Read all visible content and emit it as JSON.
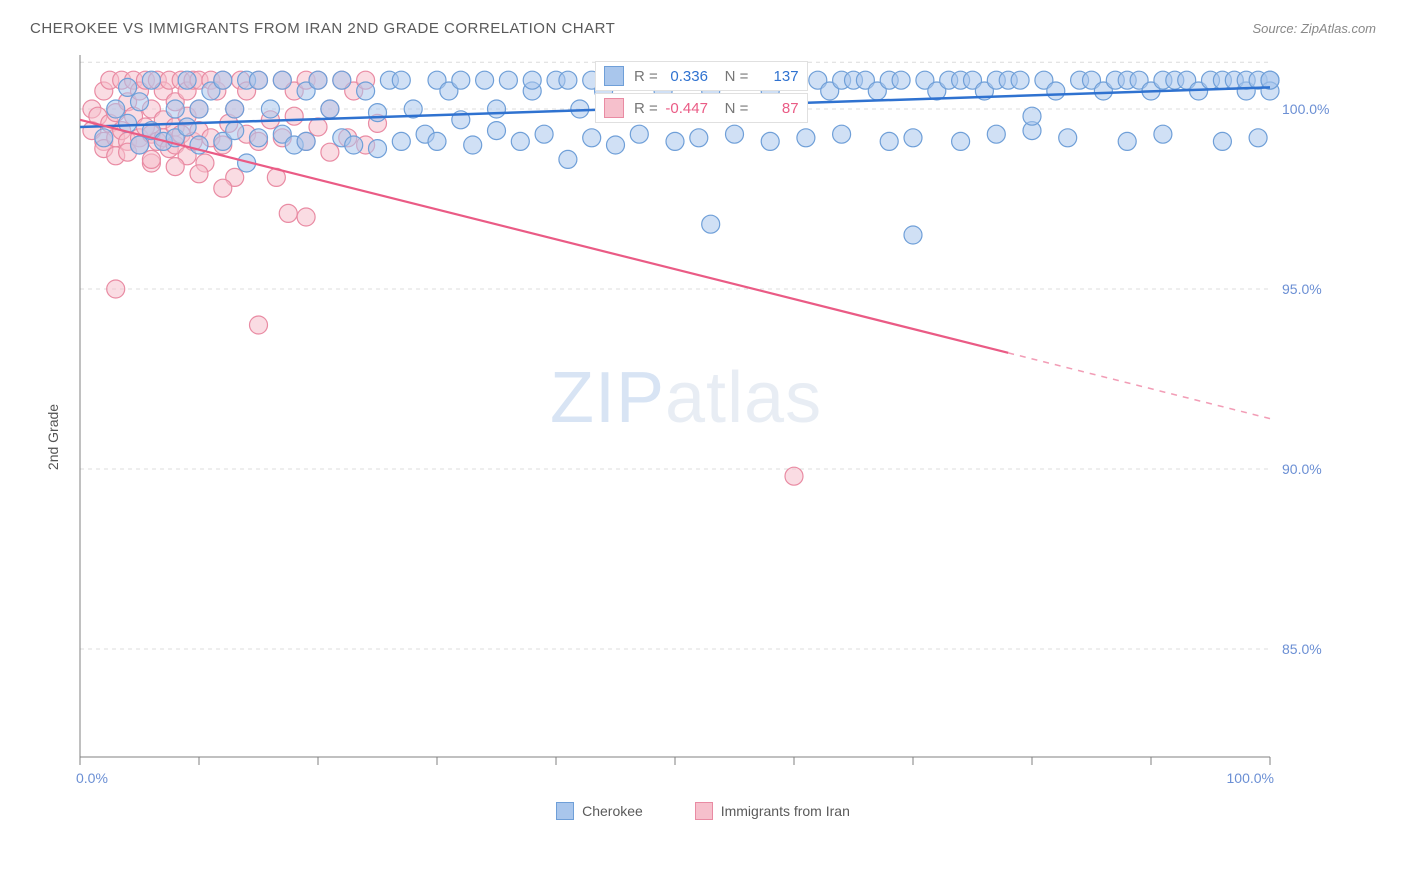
{
  "title": "CHEROKEE VS IMMIGRANTS FROM IRAN 2ND GRADE CORRELATION CHART",
  "source_label": "Source: ZipAtlas.com",
  "y_axis_label": "2nd Grade",
  "watermark_a": "ZIP",
  "watermark_b": "atlas",
  "chart": {
    "type": "scatter",
    "xlim": [
      0,
      100
    ],
    "ylim": [
      82,
      101.5
    ],
    "x_ticks": [
      0,
      10,
      20,
      30,
      40,
      50,
      60,
      70,
      80,
      90,
      100
    ],
    "x_tick_labels_shown": {
      "0": "0.0%",
      "100": "100.0%"
    },
    "y_ticks": [
      85,
      90,
      95,
      100
    ],
    "y_tick_labels": {
      "85": "85.0%",
      "90": "90.0%",
      "95": "95.0%",
      "100": "100.0%"
    },
    "y_grid_extra": [
      101.3
    ],
    "grid_color": "#dcdcdc",
    "axis_line_color": "#808080",
    "tick_label_color": "#6b8fd4",
    "background_color": "#ffffff",
    "series": [
      {
        "name": "Cherokee",
        "color_fill": "#a9c6ec",
        "color_stroke": "#6f9fd8",
        "marker_radius": 9,
        "fill_opacity": 0.55,
        "trend": {
          "x1": 0,
          "y1": 99.5,
          "x2": 100,
          "y2": 100.6,
          "color": "#2f72d0",
          "width": 2.5,
          "dash_from_x": null
        },
        "stats": {
          "r_label": "R =",
          "r": "0.336",
          "n_label": "N =",
          "n": "137"
        },
        "points": [
          [
            2,
            99.2
          ],
          [
            3,
            100
          ],
          [
            4,
            99.6
          ],
          [
            4,
            100.6
          ],
          [
            5,
            99
          ],
          [
            5,
            100.2
          ],
          [
            6,
            99.4
          ],
          [
            6,
            100.8
          ],
          [
            7,
            99.1
          ],
          [
            8,
            100
          ],
          [
            8,
            99.2
          ],
          [
            9,
            100.8
          ],
          [
            9,
            99.5
          ],
          [
            10,
            100
          ],
          [
            10,
            99
          ],
          [
            11,
            100.5
          ],
          [
            12,
            99.1
          ],
          [
            12,
            100.8
          ],
          [
            13,
            100
          ],
          [
            13,
            99.4
          ],
          [
            14,
            100.8
          ],
          [
            14,
            98.5
          ],
          [
            15,
            99.2
          ],
          [
            15,
            100.8
          ],
          [
            16,
            100
          ],
          [
            17,
            99.3
          ],
          [
            17,
            100.8
          ],
          [
            18,
            99
          ],
          [
            19,
            100.5
          ],
          [
            19,
            99.1
          ],
          [
            20,
            100.8
          ],
          [
            21,
            100
          ],
          [
            22,
            99.2
          ],
          [
            22,
            100.8
          ],
          [
            23,
            99
          ],
          [
            24,
            100.5
          ],
          [
            25,
            98.9
          ],
          [
            25,
            99.9
          ],
          [
            26,
            100.8
          ],
          [
            27,
            99.1
          ],
          [
            27,
            100.8
          ],
          [
            28,
            100
          ],
          [
            29,
            99.3
          ],
          [
            30,
            100.8
          ],
          [
            30,
            99.1
          ],
          [
            31,
            100.5
          ],
          [
            32,
            99.7
          ],
          [
            32,
            100.8
          ],
          [
            33,
            99
          ],
          [
            34,
            100.8
          ],
          [
            35,
            100
          ],
          [
            35,
            99.4
          ],
          [
            36,
            100.8
          ],
          [
            37,
            99.1
          ],
          [
            38,
            100.5
          ],
          [
            38,
            100.8
          ],
          [
            39,
            99.3
          ],
          [
            40,
            100.8
          ],
          [
            41,
            98.6
          ],
          [
            41,
            100.8
          ],
          [
            42,
            100
          ],
          [
            43,
            99.2
          ],
          [
            43,
            100.8
          ],
          [
            44,
            100.5
          ],
          [
            45,
            99
          ],
          [
            45,
            100.8
          ],
          [
            46,
            100.8
          ],
          [
            47,
            99.3
          ],
          [
            48,
            100.8
          ],
          [
            49,
            100.5
          ],
          [
            50,
            99.1
          ],
          [
            50,
            100.8
          ],
          [
            51,
            100.8
          ],
          [
            52,
            99.2
          ],
          [
            53,
            100.5
          ],
          [
            53,
            96.8
          ],
          [
            54,
            100.8
          ],
          [
            55,
            99.3
          ],
          [
            56,
            100.8
          ],
          [
            57,
            100.8
          ],
          [
            58,
            100.5
          ],
          [
            58,
            99.1
          ],
          [
            59,
            100.8
          ],
          [
            60,
            100.8
          ],
          [
            61,
            99.2
          ],
          [
            62,
            100.8
          ],
          [
            63,
            100.5
          ],
          [
            64,
            99.3
          ],
          [
            64,
            100.8
          ],
          [
            65,
            100.8
          ],
          [
            66,
            100.8
          ],
          [
            67,
            100.5
          ],
          [
            68,
            99.1
          ],
          [
            68,
            100.8
          ],
          [
            69,
            100.8
          ],
          [
            70,
            99.2
          ],
          [
            70,
            96.5
          ],
          [
            71,
            100.8
          ],
          [
            72,
            100.5
          ],
          [
            73,
            100.8
          ],
          [
            74,
            99.1
          ],
          [
            74,
            100.8
          ],
          [
            75,
            100.8
          ],
          [
            76,
            100.5
          ],
          [
            77,
            99.3
          ],
          [
            77,
            100.8
          ],
          [
            78,
            100.8
          ],
          [
            79,
            100.8
          ],
          [
            80,
            99.4
          ],
          [
            80,
            99.8
          ],
          [
            81,
            100.8
          ],
          [
            82,
            100.5
          ],
          [
            83,
            99.2
          ],
          [
            84,
            100.8
          ],
          [
            85,
            100.8
          ],
          [
            86,
            100.5
          ],
          [
            87,
            100.8
          ],
          [
            88,
            99.1
          ],
          [
            88,
            100.8
          ],
          [
            89,
            100.8
          ],
          [
            90,
            100.5
          ],
          [
            91,
            100.8
          ],
          [
            91,
            99.3
          ],
          [
            92,
            100.8
          ],
          [
            93,
            100.8
          ],
          [
            94,
            100.5
          ],
          [
            95,
            100.8
          ],
          [
            96,
            99.1
          ],
          [
            96,
            100.8
          ],
          [
            97,
            100.8
          ],
          [
            98,
            100.5
          ],
          [
            98,
            100.8
          ],
          [
            99,
            100.8
          ],
          [
            99,
            99.2
          ],
          [
            100,
            100.8
          ],
          [
            100,
            100.5
          ],
          [
            100,
            100.8
          ]
        ]
      },
      {
        "name": "Immigrants from Iran",
        "color_fill": "#f6c0cc",
        "color_stroke": "#e98ba3",
        "marker_radius": 9,
        "fill_opacity": 0.55,
        "trend": {
          "x1": 0,
          "y1": 99.7,
          "x2": 100,
          "y2": 91.4,
          "color": "#ea5b85",
          "width": 2.2,
          "dash_from_x": 78
        },
        "stats": {
          "r_label": "R =",
          "r": "-0.447",
          "n_label": "N =",
          "n": "87"
        },
        "points": [
          [
            1,
            99.4
          ],
          [
            1,
            100
          ],
          [
            1.5,
            99.8
          ],
          [
            2,
            99.1
          ],
          [
            2,
            100.5
          ],
          [
            2,
            98.9
          ],
          [
            2.5,
            99.6
          ],
          [
            2.5,
            100.8
          ],
          [
            3,
            99.2
          ],
          [
            3,
            99.9
          ],
          [
            3,
            98.7
          ],
          [
            3.5,
            100.8
          ],
          [
            3.5,
            99.4
          ],
          [
            4,
            100.2
          ],
          [
            4,
            99.1
          ],
          [
            4,
            98.8
          ],
          [
            4.5,
            99.8
          ],
          [
            4.5,
            100.8
          ],
          [
            5,
            99.2
          ],
          [
            5,
            100.5
          ],
          [
            5,
            99
          ],
          [
            5.5,
            100.8
          ],
          [
            5.5,
            99.5
          ],
          [
            6,
            100
          ],
          [
            6,
            99.3
          ],
          [
            6,
            98.5
          ],
          [
            6.5,
            100.8
          ],
          [
            6.5,
            99.1
          ],
          [
            7,
            100.5
          ],
          [
            7,
            99.7
          ],
          [
            7,
            99.2
          ],
          [
            7.5,
            100.8
          ],
          [
            7.5,
            98.9
          ],
          [
            8,
            99.5
          ],
          [
            8,
            100.2
          ],
          [
            8,
            99
          ],
          [
            8.5,
            100.8
          ],
          [
            8.5,
            99.3
          ],
          [
            9,
            100.5
          ],
          [
            9,
            99.8
          ],
          [
            9,
            98.7
          ],
          [
            9.5,
            100.8
          ],
          [
            9.5,
            99.1
          ],
          [
            10,
            100
          ],
          [
            10,
            99.4
          ],
          [
            10,
            100.8
          ],
          [
            10.5,
            98.5
          ],
          [
            11,
            100.8
          ],
          [
            11,
            99.2
          ],
          [
            11.5,
            100.5
          ],
          [
            12,
            99
          ],
          [
            12,
            100.8
          ],
          [
            12.5,
            99.6
          ],
          [
            13,
            100
          ],
          [
            13,
            98.1
          ],
          [
            13.5,
            100.8
          ],
          [
            14,
            99.3
          ],
          [
            14,
            100.5
          ],
          [
            15,
            99.1
          ],
          [
            15,
            100.8
          ],
          [
            16,
            99.7
          ],
          [
            16.5,
            98.1
          ],
          [
            17,
            100.8
          ],
          [
            17,
            99.2
          ],
          [
            17.5,
            97.1
          ],
          [
            18,
            99.8
          ],
          [
            18,
            100.5
          ],
          [
            19,
            97
          ],
          [
            19,
            100.8
          ],
          [
            19,
            99.1
          ],
          [
            20,
            100.8
          ],
          [
            20,
            99.5
          ],
          [
            21,
            100
          ],
          [
            21,
            98.8
          ],
          [
            22,
            100.8
          ],
          [
            22.5,
            99.2
          ],
          [
            23,
            100.5
          ],
          [
            24,
            99
          ],
          [
            24,
            100.8
          ],
          [
            25,
            99.6
          ],
          [
            15,
            94
          ],
          [
            3,
            95
          ],
          [
            60,
            89.8
          ],
          [
            10,
            98.2
          ],
          [
            12,
            97.8
          ],
          [
            8,
            98.4
          ],
          [
            6,
            98.6
          ]
        ]
      }
    ]
  },
  "legend": {
    "items": [
      {
        "label": "Cherokee",
        "fill": "#a9c6ec",
        "stroke": "#6f9fd8"
      },
      {
        "label": "Immigrants from Iran",
        "fill": "#f6c0cc",
        "stroke": "#e98ba3"
      }
    ]
  }
}
